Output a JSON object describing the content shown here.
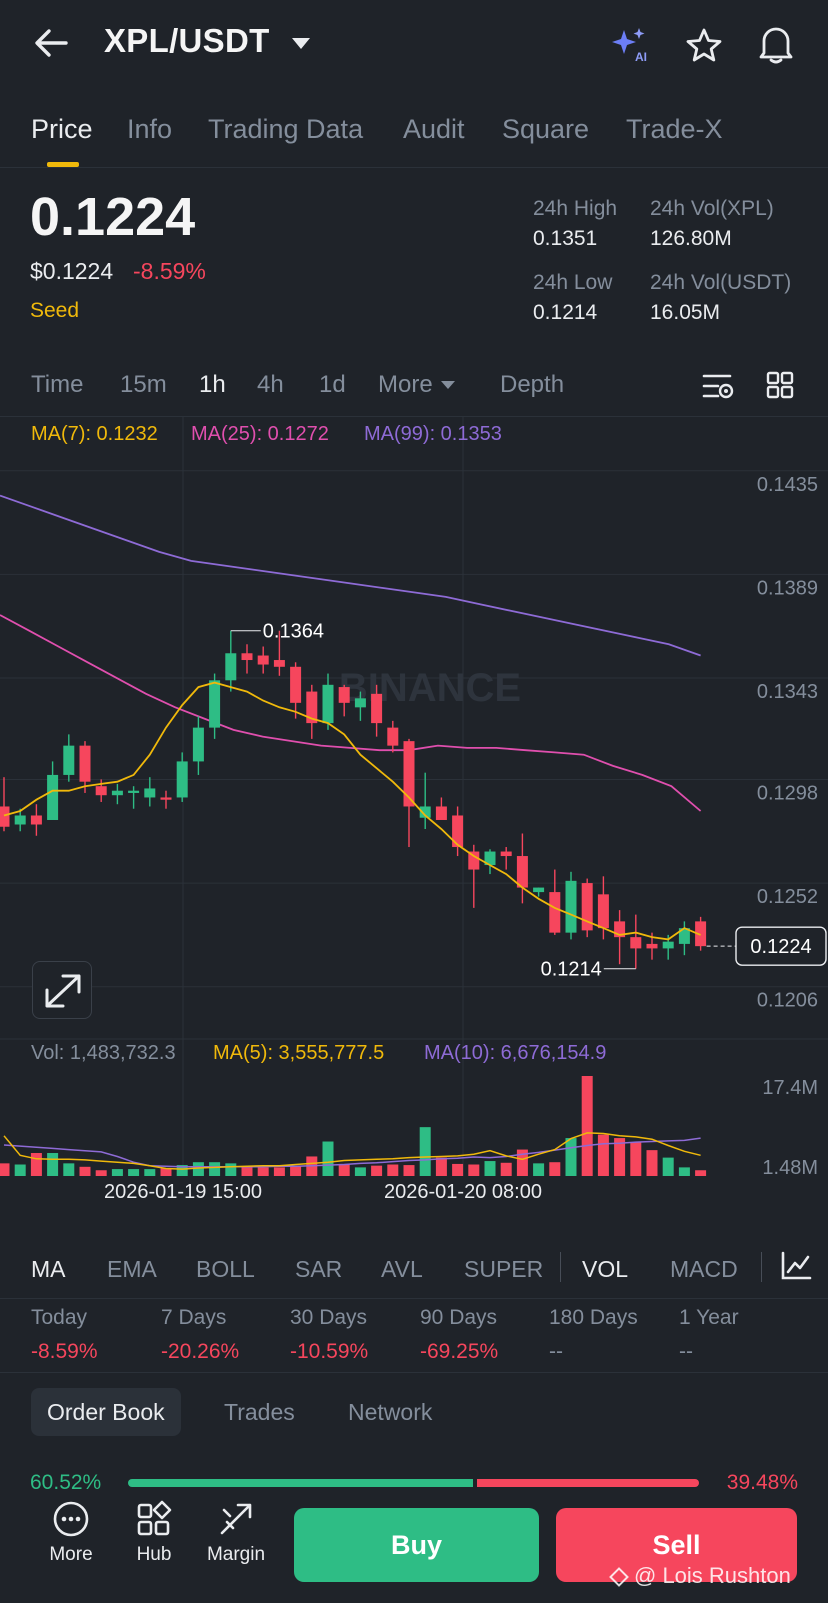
{
  "header": {
    "pair": "XPL/USDT",
    "icons": [
      "back-arrow-icon",
      "ai-sparkle-icon",
      "star-icon",
      "bell-icon"
    ],
    "ai_badge": "AI"
  },
  "tabs": [
    {
      "label": "Price",
      "active": true
    },
    {
      "label": "Info"
    },
    {
      "label": "Trading Data"
    },
    {
      "label": "Audit"
    },
    {
      "label": "Square"
    },
    {
      "label": "Trade-X"
    }
  ],
  "price": {
    "last": "0.1224",
    "usd": "$0.1224",
    "change": "-8.59%",
    "tag": "Seed"
  },
  "stats": {
    "high_label": "24h High",
    "high": "0.1351",
    "low_label": "24h Low",
    "low": "0.1214",
    "vol_base_label": "24h Vol(XPL)",
    "vol_base": "126.80M",
    "vol_quote_label": "24h Vol(USDT)",
    "vol_quote": "16.05M"
  },
  "timeframes": {
    "items": [
      "Time",
      "15m",
      "1h",
      "4h",
      "1d",
      "More",
      "Depth"
    ],
    "active": "1h"
  },
  "ma_legend": {
    "ma7": "MA(7): 0.1232",
    "ma25": "MA(25): 0.1272",
    "ma99": "MA(99): 0.1353"
  },
  "vol_legend": {
    "vol": "Vol: 1,483,732.3",
    "ma5": "MA(5): 3,555,777.5",
    "ma10": "MA(10): 6,676,154.9"
  },
  "chart_data": {
    "type": "candlestick",
    "watermark": "BINANCE",
    "y_axis_labels": [
      "0.1435",
      "0.1389",
      "0.1343",
      "0.1298",
      "0.1252",
      "0.1206"
    ],
    "ylim": [
      0.1193,
      0.1446
    ],
    "x_axis_labels": [
      "2026-01-19 15:00",
      "2026-01-20 08:00"
    ],
    "last_price_label": "0.1224",
    "high_marker": "0.1364",
    "low_marker": "0.1214",
    "vol_axis_labels": [
      "17.4M",
      "1.48M"
    ],
    "candles": [
      {
        "o": 0.1286,
        "h": 0.1299,
        "l": 0.1275,
        "c": 0.1277
      },
      {
        "o": 0.1278,
        "h": 0.1285,
        "l": 0.1275,
        "c": 0.1282
      },
      {
        "o": 0.1282,
        "h": 0.1287,
        "l": 0.1273,
        "c": 0.1278
      },
      {
        "o": 0.128,
        "h": 0.1306,
        "l": 0.128,
        "c": 0.13
      },
      {
        "o": 0.13,
        "h": 0.1318,
        "l": 0.1297,
        "c": 0.1313
      },
      {
        "o": 0.1313,
        "h": 0.1315,
        "l": 0.1292,
        "c": 0.1297
      },
      {
        "o": 0.1295,
        "h": 0.1298,
        "l": 0.1288,
        "c": 0.1291
      },
      {
        "o": 0.1291,
        "h": 0.1296,
        "l": 0.1287,
        "c": 0.1293
      },
      {
        "o": 0.1292,
        "h": 0.1295,
        "l": 0.1285,
        "c": 0.1293
      },
      {
        "o": 0.129,
        "h": 0.1299,
        "l": 0.1286,
        "c": 0.1294
      },
      {
        "o": 0.129,
        "h": 0.1293,
        "l": 0.1285,
        "c": 0.1289
      },
      {
        "o": 0.129,
        "h": 0.131,
        "l": 0.1288,
        "c": 0.1306
      },
      {
        "o": 0.1306,
        "h": 0.1326,
        "l": 0.13,
        "c": 0.1321
      },
      {
        "o": 0.1321,
        "h": 0.1345,
        "l": 0.1316,
        "c": 0.1342
      },
      {
        "o": 0.1342,
        "h": 0.1364,
        "l": 0.1337,
        "c": 0.1354
      },
      {
        "o": 0.1354,
        "h": 0.1358,
        "l": 0.1345,
        "c": 0.1351
      },
      {
        "o": 0.1353,
        "h": 0.1357,
        "l": 0.1345,
        "c": 0.1349
      },
      {
        "o": 0.1351,
        "h": 0.1364,
        "l": 0.1344,
        "c": 0.1348
      },
      {
        "o": 0.1348,
        "h": 0.135,
        "l": 0.1325,
        "c": 0.1332
      },
      {
        "o": 0.1337,
        "h": 0.134,
        "l": 0.1316,
        "c": 0.1323
      },
      {
        "o": 0.1323,
        "h": 0.1345,
        "l": 0.132,
        "c": 0.134
      },
      {
        "o": 0.1339,
        "h": 0.134,
        "l": 0.1326,
        "c": 0.1332
      },
      {
        "o": 0.133,
        "h": 0.1337,
        "l": 0.1324,
        "c": 0.1334
      },
      {
        "o": 0.1336,
        "h": 0.134,
        "l": 0.1317,
        "c": 0.1323
      },
      {
        "o": 0.1321,
        "h": 0.1324,
        "l": 0.131,
        "c": 0.1313
      },
      {
        "o": 0.1315,
        "h": 0.1316,
        "l": 0.1268,
        "c": 0.1286
      },
      {
        "o": 0.1281,
        "h": 0.1301,
        "l": 0.1276,
        "c": 0.1286
      },
      {
        "o": 0.1286,
        "h": 0.129,
        "l": 0.1281,
        "c": 0.128
      },
      {
        "o": 0.1282,
        "h": 0.1286,
        "l": 0.1264,
        "c": 0.1268
      },
      {
        "o": 0.1266,
        "h": 0.1269,
        "l": 0.1241,
        "c": 0.1258
      },
      {
        "o": 0.126,
        "h": 0.1267,
        "l": 0.1256,
        "c": 0.1266
      },
      {
        "o": 0.1266,
        "h": 0.1268,
        "l": 0.1258,
        "c": 0.1264
      },
      {
        "o": 0.1264,
        "h": 0.1274,
        "l": 0.1243,
        "c": 0.125
      },
      {
        "o": 0.1248,
        "h": 0.125,
        "l": 0.1246,
        "c": 0.125
      },
      {
        "o": 0.1248,
        "h": 0.1258,
        "l": 0.1229,
        "c": 0.123
      },
      {
        "o": 0.123,
        "h": 0.1257,
        "l": 0.1227,
        "c": 0.1253
      },
      {
        "o": 0.1252,
        "h": 0.1254,
        "l": 0.1228,
        "c": 0.1231
      },
      {
        "o": 0.1247,
        "h": 0.1255,
        "l": 0.1227,
        "c": 0.1232
      },
      {
        "o": 0.1235,
        "h": 0.124,
        "l": 0.1216,
        "c": 0.1228
      },
      {
        "o": 0.1228,
        "h": 0.1238,
        "l": 0.1214,
        "c": 0.1223
      },
      {
        "o": 0.1225,
        "h": 0.123,
        "l": 0.1218,
        "c": 0.1223
      },
      {
        "o": 0.1223,
        "h": 0.1229,
        "l": 0.1218,
        "c": 0.1226
      },
      {
        "o": 0.1225,
        "h": 0.1235,
        "l": 0.122,
        "c": 0.1232
      },
      {
        "o": 0.1235,
        "h": 0.1237,
        "l": 0.1222,
        "c": 0.1224
      }
    ],
    "ma7": [
      0.1282,
      0.1284,
      0.1289,
      0.1293,
      0.1293,
      0.1295,
      0.1296,
      0.1297,
      0.13,
      0.1309,
      0.1321,
      0.1331,
      0.1339,
      0.1341,
      0.1339,
      0.1337,
      0.1333,
      0.133,
      0.1328,
      0.1325,
      0.1323,
      0.1318,
      0.1309,
      0.1303,
      0.1297,
      0.129,
      0.1282,
      0.1276,
      0.1269,
      0.1264,
      0.126,
      0.1256,
      0.125,
      0.1245,
      0.1241,
      0.1238,
      0.1235,
      0.1232,
      0.1229,
      0.123,
      0.1228,
      0.1227,
      0.1232,
      0.1229
    ],
    "ma25": [
      0.1371,
      0.1364,
      0.1357,
      0.135,
      0.1343,
      0.1336,
      0.133,
      0.1325,
      0.132,
      0.1317,
      0.1315,
      0.1313,
      0.1312,
      0.1311,
      0.1311,
      0.1313,
      0.1312,
      0.1312,
      0.1311,
      0.131,
      0.1309,
      0.1304,
      0.13,
      0.1295,
      0.1284
    ],
    "ma99": [
      0.1424,
      0.1419,
      0.1414,
      0.1409,
      0.1404,
      0.1399,
      0.1395,
      0.1393,
      0.1391,
      0.1389,
      0.1387,
      0.1385,
      0.1383,
      0.1381,
      0.1379,
      0.1376,
      0.1373,
      0.137,
      0.1367,
      0.1364,
      0.1361,
      0.1358,
      0.1353
    ],
    "volumes": [
      2.2,
      2.0,
      4.0,
      4.0,
      2.2,
      1.6,
      1.0,
      1.2,
      1.2,
      1.2,
      1.3,
      1.9,
      2.4,
      2.4,
      2.2,
      1.5,
      1.5,
      1.5,
      1.7,
      3.4,
      6.0,
      2.1,
      1.5,
      1.8,
      2.0,
      1.9,
      8.5,
      3.2,
      2.1,
      2.0,
      2.6,
      2.3,
      4.6,
      2.2,
      2.4,
      6.6,
      17.4,
      7.2,
      6.6,
      5.9,
      4.5,
      3.2,
      1.5,
      1.0
    ],
    "vol_ma5": [
      7.0,
      3.6,
      3.0,
      2.9,
      2.9,
      2.8,
      2.6,
      2.4,
      2.2,
      1.8,
      1.3,
      1.2,
      1.4,
      1.5,
      1.6,
      1.7,
      1.8,
      1.8,
      2.0,
      2.2,
      2.4,
      2.7,
      2.8,
      2.9,
      3.0,
      3.2,
      3.3,
      3.4,
      3.5,
      3.8,
      4.4,
      3.5,
      2.9,
      3.8,
      4.6,
      6.5,
      7.5,
      7.4,
      7.0,
      6.8,
      6.4,
      5.3,
      4.3,
      3.6
    ],
    "vol_ma10": [
      5.4,
      5.2,
      5.0,
      4.8,
      4.6,
      4.4,
      4.2,
      3.4,
      2.4,
      1.8,
      1.7,
      1.6,
      1.6,
      1.6,
      1.6,
      1.6,
      1.6,
      1.7,
      1.7,
      1.8,
      1.9,
      2.0,
      2.2,
      2.3,
      2.5,
      2.7,
      2.8,
      3.0,
      3.1,
      3.3,
      3.2,
      3.4,
      3.8,
      4.1,
      4.5,
      4.9,
      5.3,
      5.6,
      5.7,
      5.9,
      6.0,
      6.1,
      6.2,
      6.6
    ]
  },
  "indicators": {
    "items": [
      "MA",
      "EMA",
      "BOLL",
      "SAR",
      "AVL",
      "SUPER",
      "VOL",
      "MACD"
    ],
    "active": [
      "MA",
      "VOL"
    ]
  },
  "performance": [
    {
      "label": "Today",
      "value": "-8.59%"
    },
    {
      "label": "7 Days",
      "value": "-20.26%"
    },
    {
      "label": "30 Days",
      "value": "-10.59%"
    },
    {
      "label": "90 Days",
      "value": "-69.25%"
    },
    {
      "label": "180 Days",
      "value": "--"
    },
    {
      "label": "1 Year",
      "value": "--"
    }
  ],
  "orderbook": {
    "tabs": [
      "Order Book",
      "Trades",
      "Network"
    ],
    "buy_ratio": "60.52%",
    "sell_ratio": "39.48%"
  },
  "bottom": {
    "more": "More",
    "hub": "Hub",
    "margin": "Margin",
    "buy": "Buy",
    "sell": "Sell",
    "watermark": "@ Lois Rushton"
  },
  "colors": {
    "up": "#2ebd85",
    "down": "#f6465d",
    "ma7": "#f0b90b",
    "ma25": "#e04fae",
    "ma99": "#8e6bd6",
    "accent": "#f0b90b",
    "background": "#1f2329"
  }
}
